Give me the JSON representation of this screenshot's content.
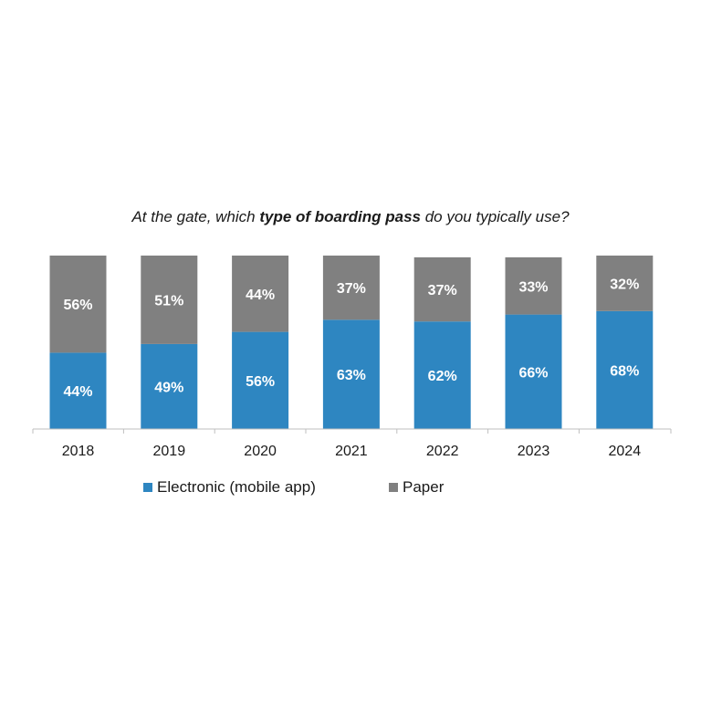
{
  "chart_data": {
    "type": "bar",
    "stacked": true,
    "title": {
      "prefix": "At the gate, which ",
      "emphasis": "type of boarding pass",
      "suffix": " do you typically use?"
    },
    "categories": [
      "2018",
      "2019",
      "2020",
      "2021",
      "2022",
      "2023",
      "2024"
    ],
    "series": [
      {
        "name": "Electronic (mobile app)",
        "color": "#2e86c1",
        "values": [
          44,
          49,
          56,
          63,
          62,
          66,
          68
        ],
        "labels": [
          "44%",
          "49%",
          "56%",
          "63%",
          "62%",
          "66%",
          "68%"
        ]
      },
      {
        "name": "Paper",
        "color": "#808080",
        "values": [
          56,
          51,
          44,
          37,
          37,
          33,
          32
        ],
        "labels": [
          "56%",
          "51%",
          "44%",
          "37%",
          "37%",
          "33%",
          "32%"
        ]
      }
    ],
    "ylim": [
      0,
      100
    ],
    "grid": false,
    "legend_position": "bottom"
  }
}
